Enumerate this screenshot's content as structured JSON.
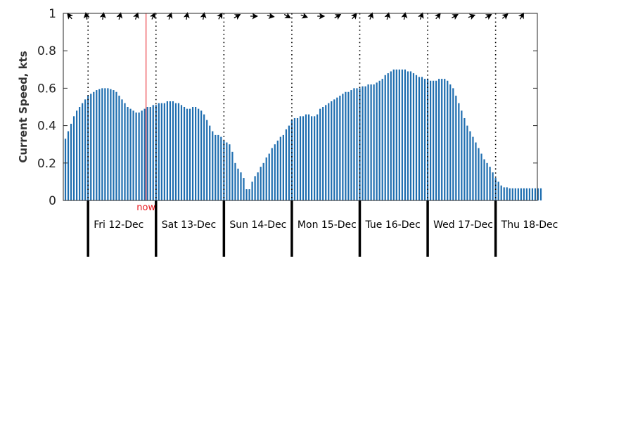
{
  "chart_data": {
    "type": "bar",
    "title": "",
    "xlabel": "",
    "ylabel": "Current Speed, kts",
    "ylim": [
      0,
      1
    ],
    "yticks": [
      {
        "value": 0,
        "label": "0"
      },
      {
        "value": 0.2,
        "label": "0.2"
      },
      {
        "value": 0.4,
        "label": "0.4"
      },
      {
        "value": 0.6,
        "label": "0.6"
      },
      {
        "value": 0.8,
        "label": "0.8"
      },
      {
        "value": 1,
        "label": "1"
      }
    ],
    "x_unit": "hours from Fri 12-Dec 00:00",
    "xlim": [
      -8.75,
      158.75
    ],
    "bar_color": "#1f6eb0",
    "grid": false,
    "legend": "none",
    "day_labels": [
      "Fri 12-Dec",
      "Sat 13-Dec",
      "Sun 14-Dec",
      "Mon 15-Dec",
      "Tue 16-Dec",
      "Wed 17-Dec",
      "Thu 18-Dec"
    ],
    "day_boundaries_hours": [
      0,
      24,
      48,
      72,
      96,
      120,
      144
    ],
    "now": {
      "label": "now",
      "hours": 20.5,
      "color": "#e8141b"
    },
    "series": [
      {
        "start_hour": -8,
        "step_hours": 1,
        "values": [
          0.33,
          0.37,
          0.41,
          0.45,
          0.48,
          0.5,
          0.52,
          0.54,
          0.56,
          0.57,
          0.58,
          0.59,
          0.595,
          0.6,
          0.6,
          0.6,
          0.595,
          0.59,
          0.58,
          0.56,
          0.54,
          0.52,
          0.5,
          0.49,
          0.48,
          0.47,
          0.47,
          0.48,
          0.49,
          0.5,
          0.5,
          0.51,
          0.51,
          0.52,
          0.52,
          0.52,
          0.53,
          0.53,
          0.53,
          0.52,
          0.52,
          0.51,
          0.5,
          0.49,
          0.49,
          0.5,
          0.5,
          0.49,
          0.48,
          0.46,
          0.43,
          0.4,
          0.37,
          0.35,
          0.35,
          0.34,
          0.32,
          0.31,
          0.3,
          0.26,
          0.2,
          0.17,
          0.15,
          0.12,
          0.06,
          0.06,
          0.1,
          0.13,
          0.15,
          0.18,
          0.2,
          0.23,
          0.25,
          0.28,
          0.3,
          0.32,
          0.34,
          0.35,
          0.38,
          0.4,
          0.43,
          0.44,
          0.44,
          0.45,
          0.45,
          0.46,
          0.46,
          0.45,
          0.45,
          0.46,
          0.49,
          0.5,
          0.51,
          0.52,
          0.53,
          0.54,
          0.55,
          0.56,
          0.57,
          0.58,
          0.58,
          0.59,
          0.6,
          0.6,
          0.6,
          0.61,
          0.61,
          0.62,
          0.62,
          0.62,
          0.63,
          0.64,
          0.65,
          0.67,
          0.68,
          0.69,
          0.7,
          0.7,
          0.7,
          0.7,
          0.7,
          0.69,
          0.69,
          0.68,
          0.67,
          0.66,
          0.66,
          0.65,
          0.65,
          0.64,
          0.64,
          0.64,
          0.65,
          0.65,
          0.65,
          0.64,
          0.62,
          0.6,
          0.56,
          0.52,
          0.48,
          0.44,
          0.4,
          0.37,
          0.34,
          0.31,
          0.28,
          0.25,
          0.22,
          0.2,
          0.18,
          0.15,
          0.12,
          0.1,
          0.08,
          0.07,
          0.07,
          0.065,
          0.065,
          0.065,
          0.065,
          0.065,
          0.065,
          0.065,
          0.065,
          0.065,
          0.065,
          0.065,
          0.065
        ]
      }
    ],
    "direction_arrows_deg": [
      -40,
      -10,
      10,
      15,
      20,
      25,
      20,
      10,
      10,
      30,
      60,
      90,
      100,
      120,
      110,
      90,
      60,
      40,
      20,
      15,
      10,
      20,
      40,
      60,
      70,
      60,
      50,
      30
    ]
  }
}
